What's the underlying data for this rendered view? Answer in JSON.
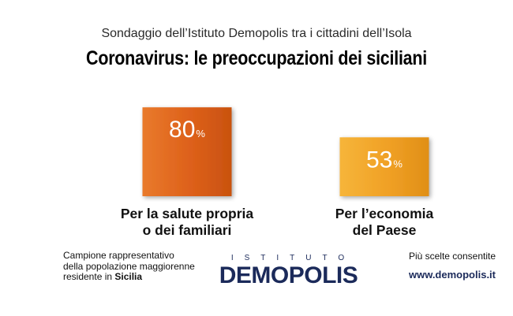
{
  "header": {
    "subtitle": "Sondaggio dell’Istituto Demopolis tra i cittadini dell’Isola",
    "title": "Coronavirus: le preoccupazioni dei siciliani"
  },
  "chart_data": {
    "type": "bar",
    "title": "Coronavirus: le preoccupazioni dei siciliani",
    "categories": [
      "Per la salute propria o dei familiari",
      "Per l’economia del Paese"
    ],
    "category_lines": [
      [
        "Per la salute propria",
        "o dei familiari"
      ],
      [
        "Per l’economia",
        "del Paese"
      ]
    ],
    "values": [
      80,
      53
    ],
    "value_unit": "%",
    "colors": [
      "#e0661f",
      "#f2a82a"
    ],
    "ylim": [
      0,
      100
    ],
    "grid": false
  },
  "footer": {
    "sample_line1": "Campione rappresentativo",
    "sample_line2": "della popolazione maggiorenne",
    "sample_line3_prefix": "residente in ",
    "sample_line3_bold": "Sicilia",
    "logo_top": "ISTITUTO",
    "logo_main": "DEMOPOLIS",
    "note": "Più scelte consentite",
    "url": "www.demopolis.it"
  }
}
